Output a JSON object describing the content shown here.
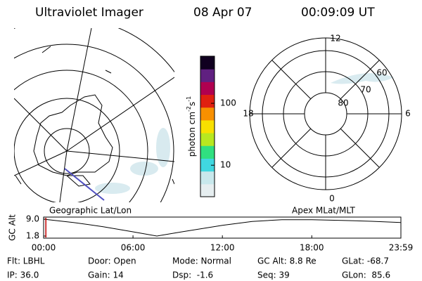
{
  "header": {
    "title": "Ultraviolet Imager",
    "date": "08 Apr 07",
    "time": "00:09:09 UT"
  },
  "map_labels": {
    "left": "Geographic Lat/Lon",
    "right": "Apex MLat/MLT"
  },
  "polar": {
    "hours": {
      "top": "12",
      "right": "6",
      "bottom": "0",
      "left": "18"
    },
    "lat_labels": [
      "80",
      "70",
      "60"
    ]
  },
  "colorbar": {
    "label": "photon cm",
    "exp1": "-2",
    "unit2": "s",
    "exp2": "-1",
    "scale": "log",
    "lim": [
      3.1,
      577
    ],
    "ticks": [
      10,
      100
    ],
    "colors": [
      "#e6eef0",
      "#c8e8ec",
      "#40d8e0",
      "#30e080",
      "#b8e820",
      "#f8e000",
      "#f89000",
      "#e02010",
      "#b00050",
      "#602080",
      "#100020"
    ]
  },
  "chart_data": {
    "type": "line",
    "ylabel": "GC Alt",
    "x": [
      0,
      2,
      4,
      6,
      7.6,
      9,
      12,
      14,
      16,
      18,
      20,
      22,
      23.983
    ],
    "y": [
      9.0,
      7.6,
      5.8,
      3.6,
      1.8,
      3.3,
      6.4,
      8.0,
      8.8,
      8.8,
      8.5,
      8.1,
      7.6
    ],
    "color": "#000000",
    "marker_x": 0.1525,
    "marker_color": "#c00000",
    "xlim": [
      0,
      23.983
    ],
    "ylim": [
      0.9,
      9.9
    ],
    "xticks": [
      {
        "value": 0,
        "label": "00:00"
      },
      {
        "value": 6,
        "label": "06:00"
      },
      {
        "value": 12,
        "label": "12:00"
      },
      {
        "value": 18,
        "label": "18:00"
      },
      {
        "value": 23.983,
        "label": "23:59"
      }
    ],
    "yticks": [
      {
        "value": 9.0,
        "label": "9.0"
      },
      {
        "value": 1.8,
        "label": "1.8"
      }
    ]
  },
  "footer": {
    "rows": [
      [
        "Flt: LBHL",
        "Door: Open",
        "Mode: Normal",
        "GC Alt: 8.8 Re",
        "GLat: -68.7"
      ],
      [
        "IP: 36.0",
        "Gain: 14",
        "Dsp:  -1.6",
        "Seq: 39",
        "GLon:  85.6"
      ]
    ]
  }
}
